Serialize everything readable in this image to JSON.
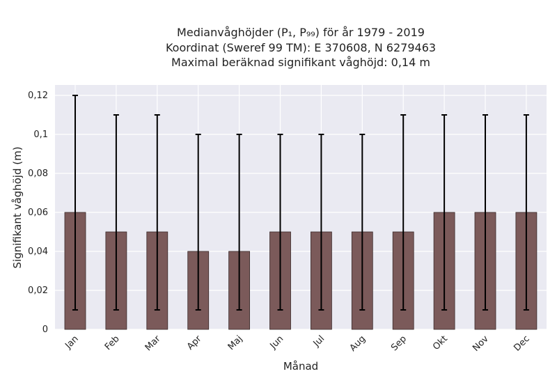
{
  "chart_data": {
    "type": "bar",
    "title_lines": [
      "Medianvåghöjder (P₁, P₉₉) för år 1979 - 2019",
      "Koordinat (Sweref 99 TM): E 370608, N 6279463",
      "Maximal beräknad signifikant våghöjd: 0,14 m"
    ],
    "xlabel": "Månad",
    "ylabel": "Signifikant våghöjd (m)",
    "categories": [
      "Jan",
      "Feb",
      "Mar",
      "Apr",
      "Maj",
      "Jun",
      "Jul",
      "Aug",
      "Sep",
      "Okt",
      "Nov",
      "Dec"
    ],
    "values": [
      0.06,
      0.05,
      0.05,
      0.04,
      0.04,
      0.05,
      0.05,
      0.05,
      0.05,
      0.06,
      0.06,
      0.06
    ],
    "p1": [
      0.01,
      0.01,
      0.01,
      0.01,
      0.01,
      0.01,
      0.01,
      0.01,
      0.01,
      0.01,
      0.01,
      0.01
    ],
    "p99": [
      0.12,
      0.11,
      0.11,
      0.1,
      0.1,
      0.1,
      0.1,
      0.1,
      0.11,
      0.11,
      0.11,
      0.11
    ],
    "yticks": [
      0,
      0.02,
      0.04,
      0.06,
      0.08,
      0.1,
      0.12
    ],
    "ytick_labels": [
      "0",
      "0,02",
      "0,04",
      "0,06",
      "0,08",
      "0,1",
      "0,12"
    ],
    "ylim": [
      0,
      0.125
    ],
    "grid": true,
    "colors": {
      "bar": "#7b5a5a",
      "bar_edge": "#3a2a2a",
      "errorbar": "#000000",
      "plot_bg": "#eaeaf2",
      "grid": "#ffffff"
    }
  }
}
